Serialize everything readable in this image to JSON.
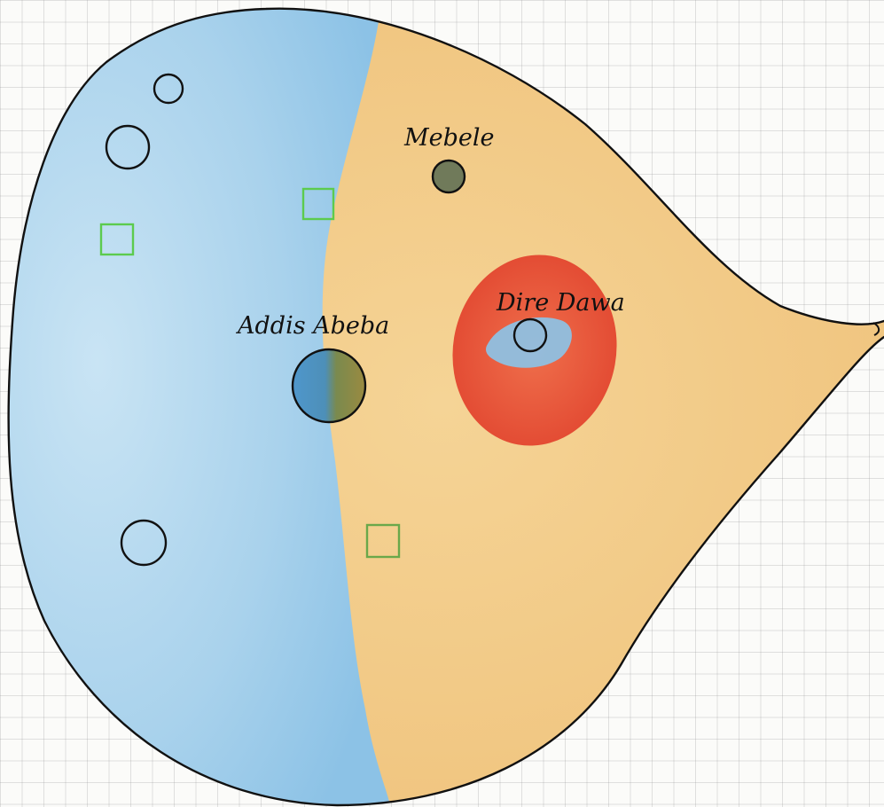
{
  "map": {
    "region_colors": {
      "west": "#a9d2ec",
      "east": "#f0c47e",
      "outline": "#111111",
      "dire_dawa_zone": "#e5482f",
      "dire_dawa_core": "#8fc0e2",
      "mebele_city": "#707a5a",
      "green_marker": "#5ccb4e"
    },
    "cities": [
      {
        "name": "Mebele"
      },
      {
        "name": "Addis Abeba"
      },
      {
        "name": "Dire Dawa"
      }
    ],
    "markers": {
      "empty_circles": 4,
      "green_squares": 3
    }
  }
}
